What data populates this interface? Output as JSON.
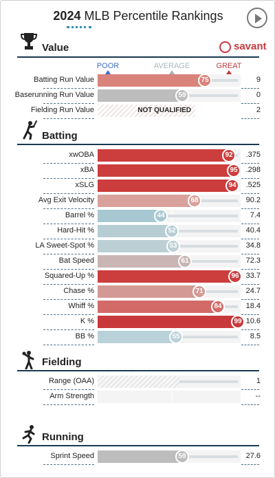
{
  "header": {
    "title_year": "2024",
    "title_rest": " MLB Percentile Rankings"
  },
  "brand": {
    "name": "savant",
    "color": "#c8393c"
  },
  "scale": {
    "poor": "POOR",
    "average": "AVERAGE",
    "great": "GREAT"
  },
  "colors": {
    "poor": "#3f6ec1",
    "average": "#a9b5bb",
    "great": "#c8393c",
    "section_line": "#17384f"
  },
  "sections": [
    {
      "title": "Value",
      "icon": "trophy-icon",
      "rows": [
        {
          "label": "Batting Run Value",
          "percentile": 75,
          "color": "#d9837b",
          "value": "9"
        },
        {
          "label": "Baserunning Run Value",
          "percentile": 59,
          "color": "#bdbdbd",
          "value": "0"
        },
        {
          "label": "Fielding Run Value",
          "percentile": null,
          "status": "NOT QUALIFIED",
          "value": "2"
        }
      ]
    },
    {
      "title": "Batting",
      "icon": "batter-icon",
      "rows": [
        {
          "label": "xwOBA",
          "percentile": 92,
          "color": "#cc3d3d",
          "value": ".375"
        },
        {
          "label": "xBA",
          "percentile": 95,
          "color": "#cc3d3d",
          "value": ".298"
        },
        {
          "label": "xSLG",
          "percentile": 94,
          "color": "#cc3d3d",
          "value": ".525"
        },
        {
          "label": "Avg Exit Velocity",
          "percentile": 68,
          "color": "#d9a19c",
          "value": "90.2"
        },
        {
          "label": "Barrel %",
          "percentile": 44,
          "color": "#a8c8d1",
          "value": "7.4"
        },
        {
          "label": "Hard-Hit %",
          "percentile": 52,
          "color": "#b6cdd3",
          "value": "40.4"
        },
        {
          "label": "LA Sweet-Spot %",
          "percentile": 53,
          "color": "#bccfd4",
          "value": "34.8"
        },
        {
          "label": "Bat Speed",
          "percentile": 61,
          "color": "#c9b5b4",
          "value": "72.3"
        },
        {
          "label": "Squared-Up %",
          "percentile": 96,
          "color": "#cc3d3d",
          "value": "33.7"
        },
        {
          "label": "Chase %",
          "percentile": 71,
          "color": "#d39a95",
          "value": "24.7"
        },
        {
          "label": "Whiff %",
          "percentile": 84,
          "color": "#d26a67",
          "value": "18.4"
        },
        {
          "label": "K %",
          "percentile": 99,
          "color": "#c8393c",
          "value": "10.6"
        },
        {
          "label": "BB %",
          "percentile": 55,
          "color": "#b9d1d8",
          "value": "8.5"
        }
      ]
    },
    {
      "title": "Fielding",
      "icon": "fielder-icon",
      "rows": [
        {
          "label": "Range (OAA)",
          "percentile": 57,
          "color": "#e9e9e9",
          "value": "1",
          "no_marker": true
        },
        {
          "label": "Arm Strength",
          "percentile": null,
          "value": "--"
        }
      ]
    },
    {
      "title": "Running",
      "icon": "runner-icon",
      "rows": [
        {
          "label": "Sprint Speed",
          "percentile": 59,
          "color": "#bdbdbd",
          "value": "27.6"
        }
      ]
    }
  ]
}
